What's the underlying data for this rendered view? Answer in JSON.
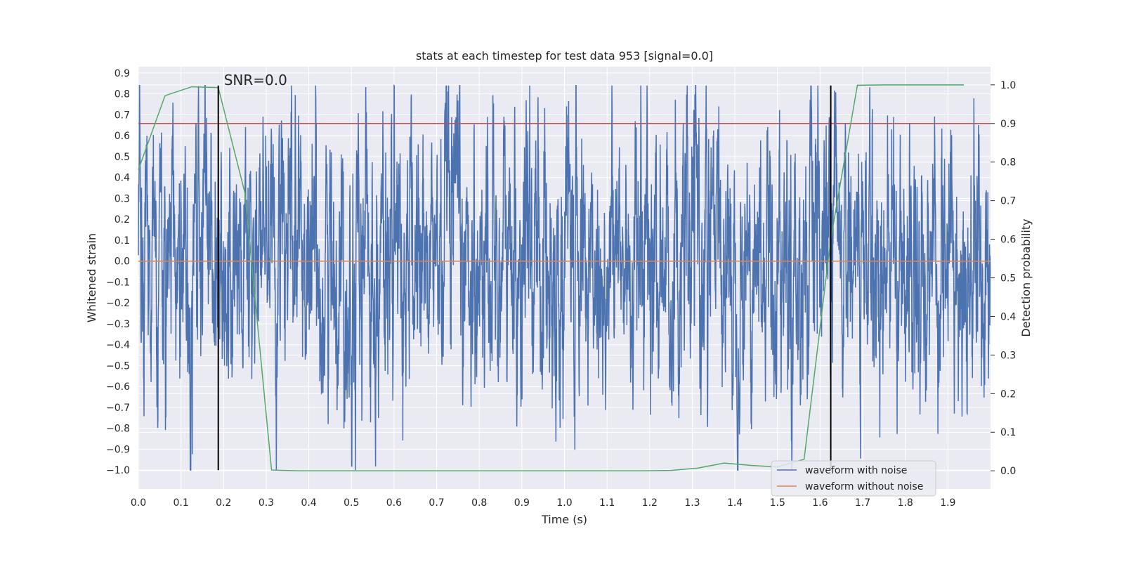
{
  "chart_data": {
    "type": "line",
    "title": "stats at each timestep for test data 953 [signal=0.0]",
    "xlabel": "Time (s)",
    "ylabel": "Whitened strain",
    "ylabel_right": "Detection probability",
    "xlim": [
      0.0,
      2.0
    ],
    "ylim": [
      -1.09,
      0.93
    ],
    "ylim_right": [
      -0.047,
      1.047
    ],
    "xticks": [
      "0.0",
      "0.1",
      "0.2",
      "0.3",
      "0.4",
      "0.5",
      "0.6",
      "0.7",
      "0.8",
      "0.9",
      "1.0",
      "1.1",
      "1.2",
      "1.3",
      "1.4",
      "1.5",
      "1.6",
      "1.7",
      "1.8",
      "1.9"
    ],
    "yticks": [
      "0.9",
      "0.8",
      "0.7",
      "0.6",
      "0.5",
      "0.4",
      "0.3",
      "0.2",
      "0.1",
      "0.0",
      "−0.1",
      "−0.2",
      "−0.3",
      "−0.4",
      "−0.5",
      "−0.6",
      "−0.7",
      "−0.8",
      "−0.9",
      "−1.0"
    ],
    "yticks_right": [
      "1.0",
      "0.9",
      "0.8",
      "0.7",
      "0.6",
      "0.5",
      "0.4",
      "0.3",
      "0.2",
      "0.1",
      "0.0"
    ],
    "grid": true,
    "legend_position": "bottom-right",
    "annotation": "SNR=0.0",
    "colors": {
      "noise": "#4c72b0",
      "clean": "#dd8452",
      "probability": "#55a868",
      "threshold": "#c44e52",
      "marker": "#000000",
      "background": "#eaeaf2",
      "grid": "#ffffff"
    },
    "series": [
      {
        "name": "waveform with noise",
        "axis": "left",
        "kind": "noise",
        "sample_rate_hz": 2048,
        "x_range": [
          0.0,
          2.0
        ],
        "y_range": [
          -1.0,
          0.84
        ]
      },
      {
        "name": "waveform without noise",
        "axis": "left",
        "x": [
          0.0,
          2.0
        ],
        "y": [
          0.0,
          0.0
        ]
      },
      {
        "axis": "right",
        "x": [
          0.0,
          0.0625,
          0.125,
          0.1875,
          0.25,
          0.3125,
          0.375,
          0.4375,
          0.5,
          0.5625,
          0.625,
          0.6875,
          0.75,
          0.8125,
          0.875,
          0.9375,
          1.0,
          1.0625,
          1.125,
          1.1875,
          1.25,
          1.3125,
          1.375,
          1.4375,
          1.5,
          1.5625,
          1.625,
          1.6875,
          1.75,
          1.8125,
          1.875,
          1.9375
        ],
        "y": [
          0.78,
          0.972,
          0.995,
          0.993,
          0.72,
          0.002,
          0.0,
          0.0,
          0.0,
          0.0,
          0.0,
          0.0,
          0.0,
          0.0,
          0.0,
          0.0,
          0.0,
          0.0,
          0.0,
          0.0,
          0.001,
          0.007,
          0.02,
          0.014,
          0.01,
          0.03,
          0.6,
          0.999,
          1.0,
          1.0,
          1.0,
          1.0
        ]
      },
      {
        "axis": "right",
        "kind": "threshold",
        "y": 0.9
      }
    ],
    "vertical_markers": [
      {
        "x": 0.1875,
        "y_from": -1.0,
        "y_to": 0.84
      },
      {
        "x": 1.625,
        "y_from": -1.0,
        "y_to": 0.84
      }
    ]
  }
}
